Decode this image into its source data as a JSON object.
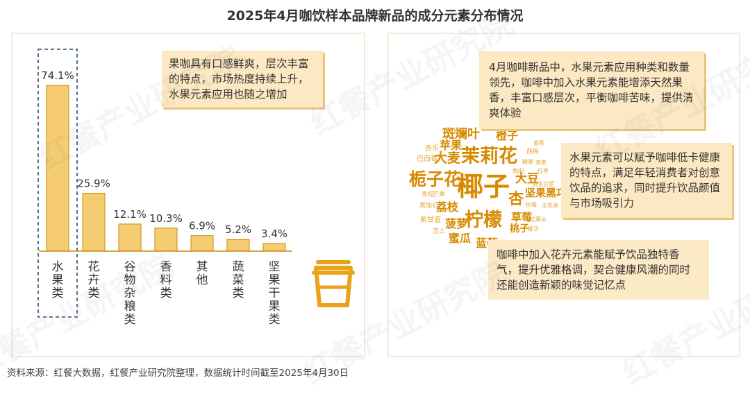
{
  "title": "2025年4月咖饮样本品牌新品的成分元素分布情况",
  "chart_data": {
    "type": "bar",
    "categories": [
      "水果类",
      "花卉类",
      "谷物杂粮类",
      "香料类",
      "其他",
      "蔬菜类",
      "坚果干果类"
    ],
    "values": [
      74.1,
      25.9,
      12.1,
      10.3,
      6.9,
      5.2,
      3.4
    ],
    "value_labels": [
      "74.1%",
      "25.9%",
      "12.1%",
      "10.3%",
      "6.9%",
      "5.2%",
      "3.4%"
    ],
    "highlighted_category": "水果类",
    "ylim": [
      0,
      80
    ],
    "grid": false,
    "legend": "none",
    "bar_color": "#f6cc72",
    "bar_stroke": "#c98a00"
  },
  "notes": {
    "left": "果咖具有口感鲜爽，层次丰富的特点，市场热度持续上升，水果元素应用也随之增加",
    "right_1": "4月咖啡新品中，水果元素应用种类和数量领先，咖啡中加入水果元素能增添天然果香，丰富口感层次，平衡咖啡苦味，提供清爽体验",
    "right_2": "水果元素可以赋予咖啡低卡健康的特点，满足年轻消费者对创意饮品的追求，同时提升饮品颜值与市场吸引力",
    "right_3": "咖啡中加入花卉元素能赋予饮品独特香气，提升优雅格调，契合健康风潮的同时还能创造新颖的味觉记忆点"
  },
  "word_cloud": [
    {
      "text": "椰子",
      "color": "#d68a00"
    },
    {
      "text": "茉莉花",
      "color": "#d68a00"
    },
    {
      "text": "栀子花",
      "color": "#d68a00"
    },
    {
      "text": "柠檬",
      "color": "#d68a00"
    },
    {
      "text": "杏",
      "color": "#d68a00"
    },
    {
      "text": "斑斓叶",
      "color": "#d68a00"
    },
    {
      "text": "大麦",
      "color": "#d68a00"
    },
    {
      "text": "橙子",
      "color": "#d68a00"
    },
    {
      "text": "大豆",
      "color": "#d68a00"
    },
    {
      "text": "坚果黑巧",
      "color": "#d68a00"
    },
    {
      "text": "荔枝",
      "color": "#d68a00"
    },
    {
      "text": "菠萝",
      "color": "#d68a00"
    },
    {
      "text": "蜜瓜",
      "color": "#d68a00"
    },
    {
      "text": "蓝莓",
      "color": "#d68a00"
    },
    {
      "text": "苹果",
      "color": "#d68a00"
    },
    {
      "text": "草莓",
      "color": "#d68a00"
    },
    {
      "text": "桃子",
      "color": "#d68a00"
    },
    {
      "text": "山竹",
      "color": "#e3a93a"
    },
    {
      "text": "杏乐",
      "color": "#e3a93a"
    },
    {
      "text": "巴西莓",
      "color": "#e3a93a"
    },
    {
      "text": "香蕉",
      "color": "#e3a93a"
    },
    {
      "text": "西梅",
      "color": "#e3a93a"
    },
    {
      "text": "糖果",
      "color": "#e3a93a"
    },
    {
      "text": "燕麦",
      "color": "#e3a93a"
    },
    {
      "text": "红枣",
      "color": "#e3a93a"
    },
    {
      "text": "枸杞",
      "color": "#e3a93a"
    },
    {
      "text": "羽衣甘蓝",
      "color": "#e3a93a"
    },
    {
      "text": "青提",
      "color": "#e3a93a"
    },
    {
      "text": "芒果",
      "color": "#e3a93a"
    },
    {
      "text": "黑加仑",
      "color": "#e3a93a"
    },
    {
      "text": "树莓",
      "color": "#e3a93a"
    },
    {
      "text": "无花果",
      "color": "#e3a93a"
    },
    {
      "text": "紫甘蓝",
      "color": "#e3a93a"
    },
    {
      "text": "红薯头",
      "color": "#e3a93a"
    },
    {
      "text": "芝士",
      "color": "#e3a93a"
    },
    {
      "text": "椰子",
      "color": "#e3a93a"
    },
    {
      "text": "凤梨",
      "color": "#e3a93a"
    }
  ],
  "cup_icon": "coffee-cup-icon",
  "watermark": "红餐产业研究院",
  "source": "资料来源：红餐大数据，红餐产业研究院整理，数据统计时间截至2025年4月30日"
}
